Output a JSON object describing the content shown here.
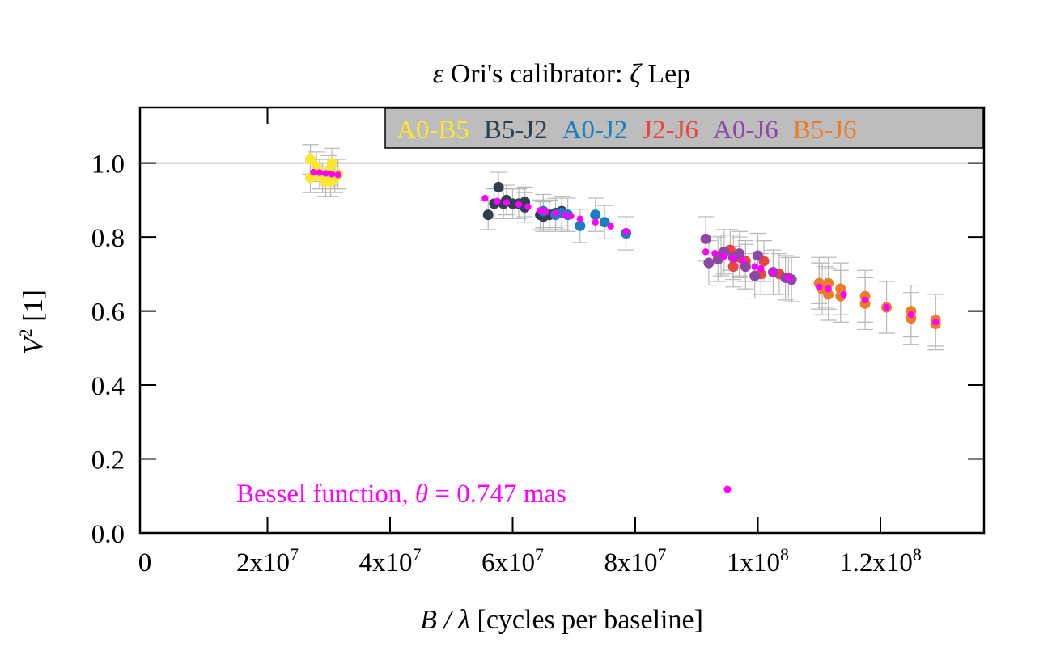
{
  "chart_data": {
    "type": "scatter",
    "title": {
      "symbol_left": "ε",
      "text_mid": " Ori's calibrator: ",
      "symbol_right": "ζ",
      "text_right": " Lep"
    },
    "xlabel": {
      "var": "B / λ",
      "rest": " [cycles per baseline]"
    },
    "ylabel": {
      "var": "V",
      "sup": "2",
      "rest": " [1]"
    },
    "xlim": [
      0,
      134000000
    ],
    "ylim": [
      0,
      1.15
    ],
    "reference_line": 1.0,
    "xticks": [
      {
        "value": 0,
        "mant": "0",
        "exp": ""
      },
      {
        "value": 20000000,
        "mant": "2x10",
        "exp": "7"
      },
      {
        "value": 40000000,
        "mant": "4x10",
        "exp": "7"
      },
      {
        "value": 60000000,
        "mant": "6x10",
        "exp": "7"
      },
      {
        "value": 80000000,
        "mant": "8x10",
        "exp": "7"
      },
      {
        "value": 100000000,
        "mant": "1x10",
        "exp": "8"
      },
      {
        "value": 120000000,
        "mant": "1.2x10",
        "exp": "8"
      }
    ],
    "yticks": [
      {
        "value": 0.0,
        "label": "0.0"
      },
      {
        "value": 0.2,
        "label": "0.2"
      },
      {
        "value": 0.4,
        "label": "0.4"
      },
      {
        "value": 0.6,
        "label": "0.6"
      },
      {
        "value": 0.8,
        "label": "0.8"
      },
      {
        "value": 1.0,
        "label": "1.0"
      }
    ],
    "legend_position": "top-right",
    "series": [
      {
        "name": "A0-B5",
        "color": "#fde72c",
        "err": 0.04,
        "points": [
          [
            27000000.0,
            1.01
          ],
          [
            27000000.0,
            0.96
          ],
          [
            28000000.0,
            0.99
          ],
          [
            28500000.0,
            0.97
          ],
          [
            29000000.0,
            0.96
          ],
          [
            29500000.0,
            0.95
          ],
          [
            30000000.0,
            0.98
          ],
          [
            30300000.0,
            0.95
          ],
          [
            30500000.0,
            1.0
          ],
          [
            30800000.0,
            0.97
          ],
          [
            31000000.0,
            0.96
          ],
          [
            31500000.0,
            0.97
          ]
        ]
      },
      {
        "name": "B5-J2",
        "color": "#2e3f50",
        "err": 0.04,
        "points": [
          [
            56000000.0,
            0.86
          ],
          [
            57000000.0,
            0.89
          ],
          [
            57700000.0,
            0.935
          ],
          [
            58500000.0,
            0.89
          ],
          [
            59000000.0,
            0.9
          ],
          [
            60000000.0,
            0.89
          ],
          [
            61000000.0,
            0.89
          ],
          [
            62000000.0,
            0.895
          ],
          [
            62000000.0,
            0.88
          ],
          [
            64500000.0,
            0.86
          ],
          [
            65000000.0,
            0.855
          ],
          [
            66000000.0,
            0.86
          ],
          [
            67000000.0,
            0.865
          ],
          [
            68000000.0,
            0.87
          ]
        ]
      },
      {
        "name": "A0-J2",
        "color": "#1a7fc0",
        "err": 0.045,
        "points": [
          [
            65000000.0,
            0.87
          ],
          [
            67000000.0,
            0.86
          ],
          [
            68000000.0,
            0.865
          ],
          [
            69000000.0,
            0.86
          ],
          [
            71000000.0,
            0.83
          ],
          [
            73500000.0,
            0.86
          ],
          [
            75000000.0,
            0.84
          ],
          [
            78500000.0,
            0.81
          ]
        ]
      },
      {
        "name": "J2-J6",
        "color": "#e9463c",
        "err": 0.055,
        "points": [
          [
            94000000.0,
            0.75
          ],
          [
            95500000.0,
            0.765
          ],
          [
            96000000.0,
            0.72
          ],
          [
            97000000.0,
            0.745
          ],
          [
            98000000.0,
            0.735
          ],
          [
            100500000.0,
            0.7
          ],
          [
            101000000.0,
            0.735
          ],
          [
            103500000.0,
            0.7
          ],
          [
            105000000.0,
            0.69
          ],
          [
            110000000.0,
            0.675
          ],
          [
            111000000.0,
            0.665
          ]
        ]
      },
      {
        "name": "A0-J6",
        "color": "#8d47a7",
        "err": 0.06,
        "points": [
          [
            91500000.0,
            0.795
          ],
          [
            92000000.0,
            0.73
          ],
          [
            93500000.0,
            0.74
          ],
          [
            94500000.0,
            0.76
          ],
          [
            96000000.0,
            0.745
          ],
          [
            97000000.0,
            0.755
          ],
          [
            98000000.0,
            0.72
          ],
          [
            99500000.0,
            0.695
          ],
          [
            100000000.0,
            0.75
          ],
          [
            102500000.0,
            0.705
          ],
          [
            104500000.0,
            0.69
          ],
          [
            105500000.0,
            0.685
          ]
        ]
      },
      {
        "name": "B5-J6",
        "color": "#ec7c27",
        "err": 0.07,
        "points": [
          [
            110000000.0,
            0.675
          ],
          [
            110500000.0,
            0.66
          ],
          [
            111500000.0,
            0.675
          ],
          [
            111500000.0,
            0.645
          ],
          [
            113500000.0,
            0.66
          ],
          [
            113500000.0,
            0.64
          ],
          [
            117500000.0,
            0.64
          ],
          [
            117500000.0,
            0.62
          ],
          [
            121000000.0,
            0.61
          ],
          [
            125000000.0,
            0.6
          ],
          [
            125000000.0,
            0.58
          ],
          [
            129000000.0,
            0.575
          ],
          [
            129000000.0,
            0.565
          ]
        ]
      }
    ],
    "model": {
      "label": "Bessel function, ",
      "theta_symbol": "θ",
      "theta_value": " = 0.747 mas",
      "color": "#ff00ff",
      "points": [
        [
          27500000.0,
          0.975
        ],
        [
          28500000.0,
          0.974
        ],
        [
          29500000.0,
          0.972
        ],
        [
          30500000.0,
          0.97
        ],
        [
          31500000.0,
          0.968
        ],
        [
          55500000.0,
          0.905
        ],
        [
          57500000.0,
          0.897
        ],
        [
          59000000.0,
          0.893
        ],
        [
          61000000.0,
          0.888
        ],
        [
          62500000.0,
          0.882
        ],
        [
          64500000.0,
          0.872
        ],
        [
          65500000.0,
          0.868
        ],
        [
          67000000.0,
          0.864
        ],
        [
          68500000.0,
          0.86
        ],
        [
          69500000.0,
          0.857
        ],
        [
          71000000.0,
          0.849
        ],
        [
          73500000.0,
          0.84
        ],
        [
          76000000.0,
          0.829
        ],
        [
          78500000.0,
          0.815
        ],
        [
          91500000.0,
          0.76
        ],
        [
          93000000.0,
          0.756
        ],
        [
          94500000.0,
          0.748
        ],
        [
          96000000.0,
          0.742
        ],
        [
          97500000.0,
          0.737
        ],
        [
          99500000.0,
          0.72
        ],
        [
          100500000.0,
          0.715
        ],
        [
          102500000.0,
          0.705
        ],
        [
          105000000.0,
          0.69
        ],
        [
          110000000.0,
          0.665
        ],
        [
          111500000.0,
          0.66
        ],
        [
          114000000.0,
          0.645
        ],
        [
          117500000.0,
          0.63
        ],
        [
          121000000.0,
          0.61
        ],
        [
          125000000.0,
          0.59
        ],
        [
          129000000.0,
          0.57
        ]
      ]
    }
  }
}
